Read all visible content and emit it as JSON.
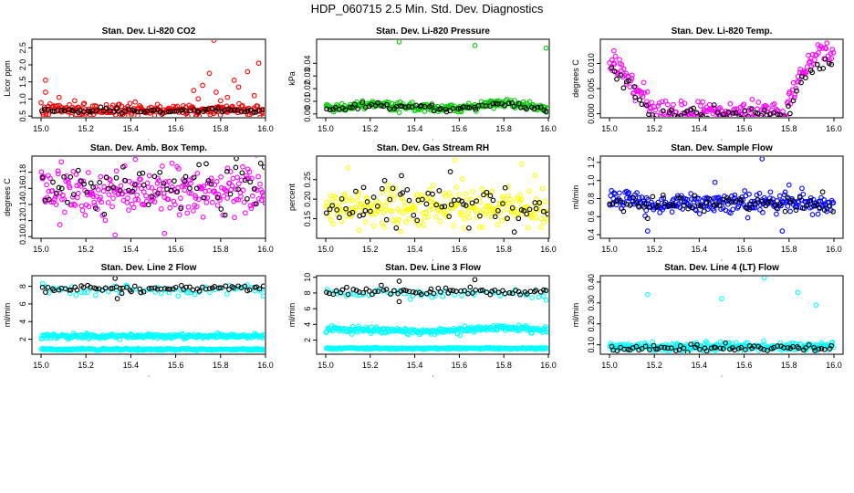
{
  "main_title": "HDP_060715  2.5 Min. Std. Dev. Diagnostics",
  "colors": {
    "red": "#ff0000",
    "green": "#00cc00",
    "magenta": "#ff00ff",
    "yellow": "#ffff00",
    "blue": "#0000ff",
    "cyan": "#00ffff",
    "black": "#000000"
  },
  "chart_data": [
    {
      "type": "scatter",
      "id": "li820-co2",
      "title": "Stan. Dev. Li-820 CO2",
      "xlabel": "",
      "ylabel": "Licor ppm",
      "xlim": [
        15.0,
        16.0
      ],
      "ylim": [
        0.45,
        2.75
      ],
      "xticks": [
        "15.0",
        "15.2",
        "15.4",
        "15.6",
        "15.8",
        "16.0"
      ],
      "yticks": [
        0.5,
        1.0,
        1.5,
        2.0,
        2.5
      ],
      "ytick_labels": [
        "0.5",
        "1.0",
        "1.5",
        "2.0",
        "2.5"
      ],
      "series": [
        {
          "name": "red",
          "color": "red",
          "n": 240,
          "base": [
            [
              15.0,
              0.68
            ],
            [
              16.0,
              0.68
            ]
          ],
          "sd": 0.09,
          "outliers": [
            [
              15.02,
              1.55
            ],
            [
              15.02,
              1.2
            ],
            [
              15.08,
              1.05
            ],
            [
              15.15,
              0.95
            ],
            [
              15.72,
              1.4
            ],
            [
              15.75,
              1.75
            ],
            [
              15.78,
              1.2
            ],
            [
              15.8,
              0.95
            ],
            [
              15.83,
              1.05
            ],
            [
              15.86,
              1.55
            ],
            [
              15.88,
              1.35
            ],
            [
              15.92,
              1.8
            ],
            [
              15.95,
              1.1
            ],
            [
              15.97,
              2.05
            ],
            [
              15.77,
              2.72
            ],
            [
              15.68,
              1.25
            ],
            [
              15.7,
              1.0
            ]
          ]
        },
        {
          "name": "black",
          "color": "black",
          "n": 70,
          "base": [
            [
              15.0,
              0.66
            ],
            [
              16.0,
              0.66
            ]
          ],
          "sd": 0.04,
          "outliers": []
        }
      ]
    },
    {
      "type": "scatter",
      "id": "li820-pressure",
      "title": "Stan. Dev. Li-820 Pressure",
      "xlabel": "",
      "ylabel": "kPa",
      "xlim": [
        15.0,
        16.0
      ],
      "ylim": [
        -0.003,
        0.059
      ],
      "xticks": [
        "15.0",
        "15.2",
        "15.4",
        "15.6",
        "15.8",
        "16.0"
      ],
      "yticks": [
        0.0,
        0.01,
        0.02,
        0.03,
        0.04
      ],
      "ytick_labels": [
        "0.00",
        "0.01",
        "0.02",
        "0.03",
        "0.04"
      ],
      "series": [
        {
          "name": "green",
          "color": "green",
          "n": 240,
          "base": [
            [
              15.0,
              0.004
            ],
            [
              15.2,
              0.008
            ],
            [
              15.4,
              0.005
            ],
            [
              15.6,
              0.005
            ],
            [
              15.8,
              0.009
            ],
            [
              16.0,
              0.004
            ]
          ],
          "sd": 0.0018,
          "outliers": [
            [
              15.33,
              0.057
            ],
            [
              15.67,
              0.054
            ],
            [
              15.99,
              0.052
            ]
          ]
        },
        {
          "name": "black",
          "color": "black",
          "n": 70,
          "base": [
            [
              15.0,
              0.003
            ],
            [
              15.2,
              0.007
            ],
            [
              15.4,
              0.005
            ],
            [
              15.6,
              0.004
            ],
            [
              15.8,
              0.008
            ],
            [
              16.0,
              0.003
            ]
          ],
          "sd": 0.0012,
          "outliers": []
        }
      ]
    },
    {
      "type": "scatter",
      "id": "li820-temp",
      "title": "Stan. Dev. Li-820 Temp.",
      "xlabel": "",
      "ylabel": "degrees C",
      "xlim": [
        15.0,
        16.0
      ],
      "ylim": [
        -0.0008,
        0.0148
      ],
      "xticks": [
        "15.0",
        "15.2",
        "15.4",
        "15.6",
        "15.8",
        "16.0"
      ],
      "yticks": [
        0.0,
        0.005,
        0.01
      ],
      "ytick_labels": [
        "0.000",
        "0.005",
        "0.010"
      ],
      "series": [
        {
          "name": "magenta",
          "color": "magenta",
          "n": 240,
          "base": [
            [
              15.0,
              0.011
            ],
            [
              15.08,
              0.007
            ],
            [
              15.15,
              0.004
            ],
            [
              15.2,
              0.0
            ],
            [
              15.78,
              0.0
            ],
            [
              15.82,
              0.005
            ],
            [
              15.9,
              0.011
            ],
            [
              15.95,
              0.013
            ],
            [
              16.0,
              0.011
            ]
          ],
          "sd": 0.0012,
          "outliers": [
            [
              15.02,
              0.0125
            ],
            [
              15.25,
              0.0025
            ],
            [
              15.8,
              0.004
            ]
          ]
        },
        {
          "name": "black",
          "color": "black",
          "n": 70,
          "base": [
            [
              15.0,
              0.01
            ],
            [
              15.1,
              0.005
            ],
            [
              15.18,
              0.0
            ],
            [
              15.8,
              0.0
            ],
            [
              15.88,
              0.008
            ],
            [
              16.0,
              0.011
            ]
          ],
          "sd": 0.0008,
          "outliers": []
        }
      ]
    },
    {
      "type": "scatter",
      "id": "amb-box-temp",
      "title": "Stan. Dev. Amb. Box Temp.",
      "xlabel": "",
      "ylabel": "degrees C",
      "xlim": [
        15.0,
        16.0
      ],
      "ylim": [
        0.098,
        0.2
      ],
      "xticks": [
        "15.0",
        "15.2",
        "15.4",
        "15.6",
        "15.8",
        "16.0"
      ],
      "yticks": [
        0.1,
        0.12,
        0.14,
        0.16,
        0.18
      ],
      "ytick_labels": [
        "0.10",
        "0.12",
        "0.14",
        "0.16",
        "0.18"
      ],
      "series": [
        {
          "name": "magenta",
          "color": "magenta",
          "n": 260,
          "base": [
            [
              15.0,
              0.155
            ],
            [
              16.0,
              0.155
            ]
          ],
          "sd": 0.014,
          "outliers": [
            [
              15.33,
              0.102
            ],
            [
              15.42,
              0.196
            ],
            [
              15.55,
              0.104
            ]
          ]
        },
        {
          "name": "black",
          "color": "black",
          "n": 70,
          "base": [
            [
              15.0,
              0.16
            ],
            [
              16.0,
              0.16
            ]
          ],
          "sd": 0.016,
          "outliers": [
            [
              15.87,
              0.197
            ]
          ]
        }
      ]
    },
    {
      "type": "scatter",
      "id": "gas-stream-rh",
      "title": "Stan. Dev. Gas Stream RH",
      "xlabel": "",
      "ylabel": "percent",
      "xlim": [
        15.0,
        16.0
      ],
      "ylim": [
        0.1,
        0.31
      ],
      "xticks": [
        "15.0",
        "15.2",
        "15.4",
        "15.6",
        "15.8",
        "16.0"
      ],
      "yticks": [
        0.15,
        0.2,
        0.25
      ],
      "ytick_labels": [
        "0.15",
        "0.20",
        "0.25"
      ],
      "series": [
        {
          "name": "yellow",
          "color": "yellow",
          "n": 260,
          "base": [
            [
              15.0,
              0.18
            ],
            [
              16.0,
              0.18
            ]
          ],
          "sd": 0.025,
          "outliers": [
            [
              15.1,
              0.28
            ],
            [
              15.58,
              0.3
            ],
            [
              15.88,
              0.29
            ],
            [
              15.94,
              0.26
            ]
          ]
        },
        {
          "name": "black",
          "color": "black",
          "n": 70,
          "base": [
            [
              15.0,
              0.18
            ],
            [
              16.0,
              0.18
            ]
          ],
          "sd": 0.03,
          "outliers": [
            [
              15.34,
              0.26
            ],
            [
              15.56,
              0.27
            ],
            [
              15.17,
              0.23
            ]
          ]
        }
      ]
    },
    {
      "type": "scatter",
      "id": "sample-flow",
      "title": "Stan. Dev. Sample Flow",
      "xlabel": "",
      "ylabel": "ml/min",
      "xlim": [
        15.0,
        16.0
      ],
      "ylim": [
        0.36,
        1.27
      ],
      "xticks": [
        "15.0",
        "15.2",
        "15.4",
        "15.6",
        "15.8",
        "16.0"
      ],
      "yticks": [
        0.4,
        0.6,
        0.8,
        1.0,
        1.2
      ],
      "ytick_labels": [
        "0.4",
        "0.6",
        "0.8",
        "1.0",
        "1.2"
      ],
      "series": [
        {
          "name": "blue",
          "color": "blue",
          "n": 260,
          "base": [
            [
              15.0,
              0.8
            ],
            [
              15.2,
              0.74
            ],
            [
              16.0,
              0.74
            ]
          ],
          "sd": 0.06,
          "outliers": [
            [
              15.68,
              1.24
            ],
            [
              15.17,
              0.44
            ],
            [
              15.47,
              0.98
            ],
            [
              15.8,
              0.95
            ],
            [
              15.77,
              0.44
            ]
          ]
        },
        {
          "name": "black",
          "color": "black",
          "n": 70,
          "base": [
            [
              15.0,
              0.76
            ],
            [
              16.0,
              0.72
            ]
          ],
          "sd": 0.05,
          "outliers": [
            [
              15.17,
              0.58
            ]
          ]
        }
      ]
    },
    {
      "type": "scatter",
      "id": "line2-flow",
      "title": "Stan. Dev. Line 2 Flow",
      "xlabel": "",
      "ylabel": "ml/min",
      "xlim": [
        15.0,
        16.0
      ],
      "ylim": [
        0.3,
        9.2
      ],
      "xticks": [
        "15.0",
        "15.2",
        "15.4",
        "15.6",
        "15.8",
        "16.0"
      ],
      "yticks": [
        2,
        4,
        6,
        8
      ],
      "ytick_labels": [
        "2",
        "4",
        "6",
        "8"
      ],
      "series": [
        {
          "name": "cyan-high",
          "color": "cyan",
          "n": 60,
          "base": [
            [
              15.0,
              7.6
            ],
            [
              16.0,
              7.6
            ]
          ],
          "sd": 0.3,
          "outliers": [
            [
              15.99,
              6.9
            ],
            [
              15.65,
              7.3
            ]
          ]
        },
        {
          "name": "cyan-mid",
          "color": "cyan",
          "n": 260,
          "base": [
            [
              15.0,
              2.35
            ],
            [
              16.0,
              2.35
            ]
          ],
          "sd": 0.12,
          "outliers": []
        },
        {
          "name": "cyan-low",
          "color": "cyan",
          "n": 260,
          "base": [
            [
              15.0,
              0.85
            ],
            [
              16.0,
              0.85
            ]
          ],
          "sd": 0.05,
          "outliers": []
        },
        {
          "name": "black",
          "color": "black",
          "n": 70,
          "base": [
            [
              15.0,
              7.8
            ],
            [
              16.0,
              7.8
            ]
          ],
          "sd": 0.2,
          "outliers": [
            [
              15.33,
              8.9
            ],
            [
              15.34,
              6.6
            ],
            [
              15.36,
              7.2
            ]
          ]
        }
      ]
    },
    {
      "type": "scatter",
      "id": "line3-flow",
      "title": "Stan. Dev. Line 3 Flow",
      "xlabel": "",
      "ylabel": "ml/min",
      "xlim": [
        15.0,
        16.0
      ],
      "ylim": [
        0.2,
        10.2
      ],
      "xticks": [
        "15.0",
        "15.2",
        "15.4",
        "15.6",
        "15.8",
        "16.0"
      ],
      "yticks": [
        2,
        4,
        6,
        8,
        10
      ],
      "ytick_labels": [
        "2",
        "4",
        "6",
        "8",
        "10"
      ],
      "series": [
        {
          "name": "cyan-high",
          "color": "cyan",
          "n": 60,
          "base": [
            [
              15.0,
              8.0
            ],
            [
              16.0,
              8.0
            ]
          ],
          "sd": 0.3,
          "outliers": [
            [
              15.99,
              7.1
            ],
            [
              15.38,
              7.2
            ]
          ]
        },
        {
          "name": "cyan-mid",
          "color": "cyan",
          "n": 260,
          "base": [
            [
              15.0,
              3.4
            ],
            [
              15.5,
              3.1
            ],
            [
              15.8,
              3.6
            ],
            [
              16.0,
              3.3
            ]
          ],
          "sd": 0.2,
          "outliers": []
        },
        {
          "name": "cyan-low",
          "color": "cyan",
          "n": 260,
          "base": [
            [
              15.0,
              0.95
            ],
            [
              16.0,
              0.95
            ]
          ],
          "sd": 0.05,
          "outliers": []
        },
        {
          "name": "black",
          "color": "black",
          "n": 70,
          "base": [
            [
              15.0,
              8.2
            ],
            [
              16.0,
              8.2
            ]
          ],
          "sd": 0.25,
          "outliers": [
            [
              15.67,
              9.7
            ],
            [
              15.33,
              9.5
            ],
            [
              15.33,
              6.9
            ]
          ]
        }
      ]
    },
    {
      "type": "scatter",
      "id": "line4-flow",
      "title": "Stan. Dev. Line 4 (LT) Flow",
      "xlabel": "",
      "ylabel": "ml/min",
      "xlim": [
        15.0,
        16.0
      ],
      "ylim": [
        0.055,
        0.43
      ],
      "xticks": [
        "15.0",
        "15.2",
        "15.4",
        "15.6",
        "15.8",
        "16.0"
      ],
      "yticks": [
        0.1,
        0.2,
        0.3,
        0.4
      ],
      "ytick_labels": [
        "0.10",
        "0.20",
        "0.30",
        "0.40"
      ],
      "series": [
        {
          "name": "cyan",
          "color": "cyan",
          "n": 280,
          "base": [
            [
              15.0,
              0.09
            ],
            [
              16.0,
              0.09
            ]
          ],
          "sd": 0.01,
          "outliers": [
            [
              15.17,
              0.34
            ],
            [
              15.5,
              0.32
            ],
            [
              15.69,
              0.42
            ],
            [
              15.84,
              0.35
            ],
            [
              15.92,
              0.29
            ]
          ]
        },
        {
          "name": "black",
          "color": "black",
          "n": 70,
          "base": [
            [
              15.0,
              0.085
            ],
            [
              16.0,
              0.085
            ]
          ],
          "sd": 0.008,
          "outliers": []
        }
      ]
    }
  ]
}
